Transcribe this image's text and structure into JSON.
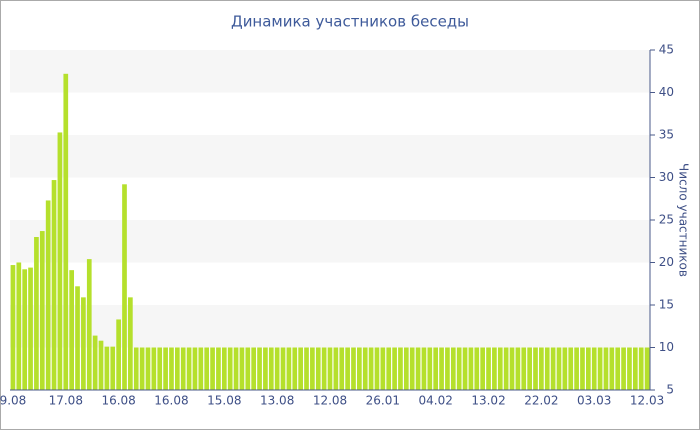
{
  "chart_data": {
    "type": "bar",
    "title": "Динамика участников беседы",
    "y_axis_label": "Число участников",
    "axis_side": "right",
    "categories": [
      "9.08",
      null,
      null,
      null,
      null,
      null,
      null,
      null,
      null,
      "17.08",
      null,
      null,
      null,
      null,
      null,
      null,
      null,
      null,
      "16.08",
      null,
      null,
      null,
      null,
      null,
      null,
      null,
      null,
      "16.08",
      null,
      null,
      null,
      null,
      null,
      null,
      null,
      null,
      "15.08",
      null,
      null,
      null,
      null,
      null,
      null,
      null,
      null,
      "13.08",
      null,
      null,
      null,
      null,
      null,
      null,
      null,
      null,
      "12.08",
      null,
      null,
      null,
      null,
      null,
      null,
      null,
      null,
      "26.01",
      null,
      null,
      null,
      null,
      null,
      null,
      null,
      null,
      "04.02",
      null,
      null,
      null,
      null,
      null,
      null,
      null,
      null,
      "13.02",
      null,
      null,
      null,
      null,
      null,
      null,
      null,
      null,
      "22.02",
      null,
      null,
      null,
      null,
      null,
      null,
      null,
      null,
      "03.03",
      null,
      null,
      null,
      null,
      null,
      null,
      null,
      null,
      "12.03"
    ],
    "values": [
      19.7,
      20,
      19.2,
      19.4,
      23,
      23.7,
      27.3,
      29.7,
      35.3,
      42.2,
      19.1,
      17.2,
      15.9,
      20.4,
      11.4,
      10.8,
      10.1,
      10.1,
      13.3,
      29.2,
      15.9,
      10,
      10,
      10,
      10,
      10,
      10,
      10,
      10,
      10,
      10,
      10,
      10,
      10,
      10,
      10,
      10,
      10,
      10,
      10,
      10,
      10,
      10,
      10,
      10,
      10,
      10,
      10,
      10,
      10,
      10,
      10,
      10,
      10,
      10,
      10,
      10,
      10,
      10,
      10,
      10,
      10,
      10,
      10,
      10,
      10,
      10,
      10,
      10,
      10,
      10,
      10,
      10,
      10,
      10,
      10,
      10,
      10,
      10,
      10,
      10,
      10,
      10,
      10,
      10,
      10,
      10,
      10,
      10,
      10,
      10,
      10,
      10,
      10,
      10,
      10,
      10,
      10,
      10,
      10,
      10,
      10,
      10,
      10,
      10,
      10,
      10,
      10,
      10
    ],
    "color": "#b5e02c",
    "ylim": [
      5,
      45
    ],
    "yticks": [
      5,
      10,
      15,
      20,
      25,
      30,
      35,
      40,
      45
    ],
    "grid": true
  }
}
